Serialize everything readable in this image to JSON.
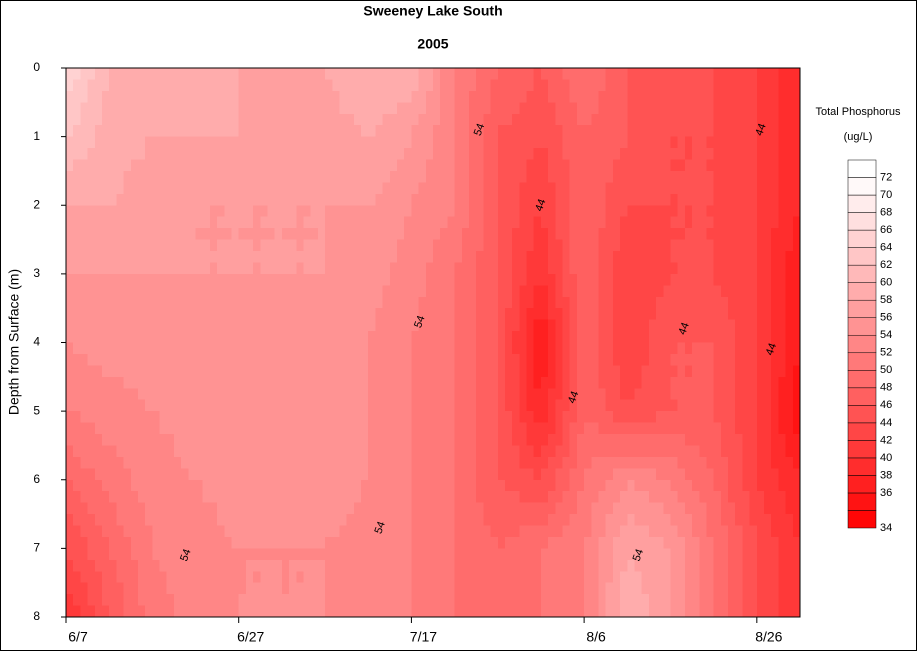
{
  "chart_data": {
    "type": "contour",
    "title": "Sweeney Lake South",
    "subtitle": "2005",
    "y_label": "Depth from Surface (m)",
    "legend_title": "Total Phosphorus",
    "legend_unit": "(ug/L)",
    "x": [
      0,
      5,
      10,
      15,
      20,
      25,
      30,
      35,
      40,
      45,
      50,
      55,
      60,
      65,
      70,
      75,
      80,
      85
    ],
    "y": [
      0,
      1,
      2,
      3,
      4,
      5,
      6,
      7,
      8
    ],
    "z": [
      [
        68,
        62,
        61,
        61,
        60,
        60,
        60,
        62,
        62,
        54,
        50,
        48,
        52,
        48,
        48,
        46,
        44,
        40
      ],
      [
        64,
        61,
        60,
        60,
        60,
        59,
        59,
        60,
        58,
        54,
        48,
        46,
        50,
        48,
        46,
        46,
        44,
        40
      ],
      [
        60,
        60,
        59,
        58,
        58,
        58,
        58,
        58,
        56,
        54,
        48,
        44,
        50,
        46,
        46,
        46,
        44,
        40
      ],
      [
        58,
        58,
        58,
        58,
        58,
        58,
        58,
        57,
        55,
        52,
        48,
        42,
        50,
        44,
        46,
        46,
        44,
        38
      ],
      [
        56,
        57,
        57,
        57,
        57,
        57,
        57,
        56,
        54,
        52,
        48,
        38,
        50,
        44,
        48,
        48,
        44,
        38
      ],
      [
        54,
        55,
        56,
        57,
        57,
        57,
        57,
        56,
        54,
        52,
        48,
        40,
        50,
        46,
        48,
        48,
        44,
        36
      ],
      [
        50,
        53,
        55,
        56,
        57,
        58,
        57,
        56,
        54,
        52,
        48,
        46,
        52,
        56,
        54,
        50,
        44,
        40
      ],
      [
        46,
        50,
        54,
        55,
        56,
        56,
        56,
        55,
        54,
        52,
        50,
        52,
        54,
        60,
        58,
        52,
        46,
        42
      ],
      [
        42,
        48,
        53,
        55,
        56,
        56,
        56,
        55,
        54,
        52,
        50,
        52,
        54,
        62,
        58,
        52,
        46,
        42
      ]
    ],
    "xlim": [
      0,
      85
    ],
    "ylim": [
      8,
      0
    ],
    "xticks": [
      {
        "value": 0,
        "label": "6/7"
      },
      {
        "value": 20,
        "label": "6/27"
      },
      {
        "value": 40,
        "label": "7/17"
      },
      {
        "value": 60,
        "label": "8/6"
      },
      {
        "value": 80,
        "label": "8/26"
      }
    ],
    "yticks": [
      0,
      1,
      2,
      3,
      4,
      5,
      6,
      7,
      8
    ],
    "levels": [
      34,
      36,
      38,
      40,
      42,
      44,
      46,
      48,
      50,
      52,
      54,
      56,
      58,
      60,
      62,
      64,
      66,
      68,
      70,
      72
    ],
    "color_low": "#ff0000",
    "color_high": "#ffffff",
    "contour_labels": [
      {
        "value": 54,
        "x": 47.9,
        "y": 0.9
      },
      {
        "value": 44,
        "x": 55,
        "y": 2.0
      },
      {
        "value": 54,
        "x": 41,
        "y": 3.7
      },
      {
        "value": 44,
        "x": 71.6,
        "y": 3.8
      },
      {
        "value": 44,
        "x": 80.5,
        "y": 0.9
      },
      {
        "value": 44,
        "x": 81.7,
        "y": 4.1
      },
      {
        "value": 44,
        "x": 58.8,
        "y": 4.8
      },
      {
        "value": 54,
        "x": 13.9,
        "y": 7.1
      },
      {
        "value": 54,
        "x": 36.4,
        "y": 6.7
      },
      {
        "value": 54,
        "x": 66.3,
        "y": 7.1
      }
    ]
  }
}
